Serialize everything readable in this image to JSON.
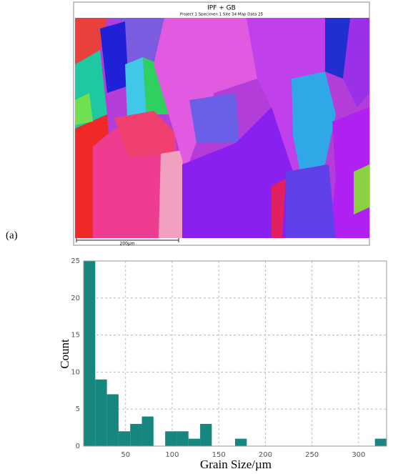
{
  "figure_label": "(a)",
  "map": {
    "title": "IPF + GB",
    "subtitle": "Project 1 Specimen 1 Site 34 Map Data 25",
    "scale_bar": "200µm"
  },
  "chart_data": {
    "type": "histogram",
    "xlabel": "Grain Size/µm",
    "ylabel": "Count",
    "bins": [
      5,
      17.5,
      30,
      42.5,
      55,
      67.5,
      80,
      92.5,
      105,
      117.5,
      130,
      142.5,
      155,
      167.5,
      180,
      192.5,
      205,
      217.5,
      230,
      242.5,
      255,
      267.5,
      280,
      292.5,
      305,
      317.5,
      330
    ],
    "counts": [
      25,
      9,
      7,
      2,
      3,
      4,
      0,
      2,
      2,
      1,
      3,
      0,
      0,
      1,
      0,
      0,
      0,
      0,
      0,
      0,
      0,
      0,
      0,
      0,
      0,
      1
    ],
    "color": "#16877f",
    "xlim": [
      5,
      330
    ],
    "xticks": [
      50,
      100,
      150,
      200,
      250,
      300
    ],
    "ylim": [
      0,
      25
    ],
    "yticks": [
      0,
      5,
      10,
      15,
      20,
      25
    ],
    "grid": true
  }
}
